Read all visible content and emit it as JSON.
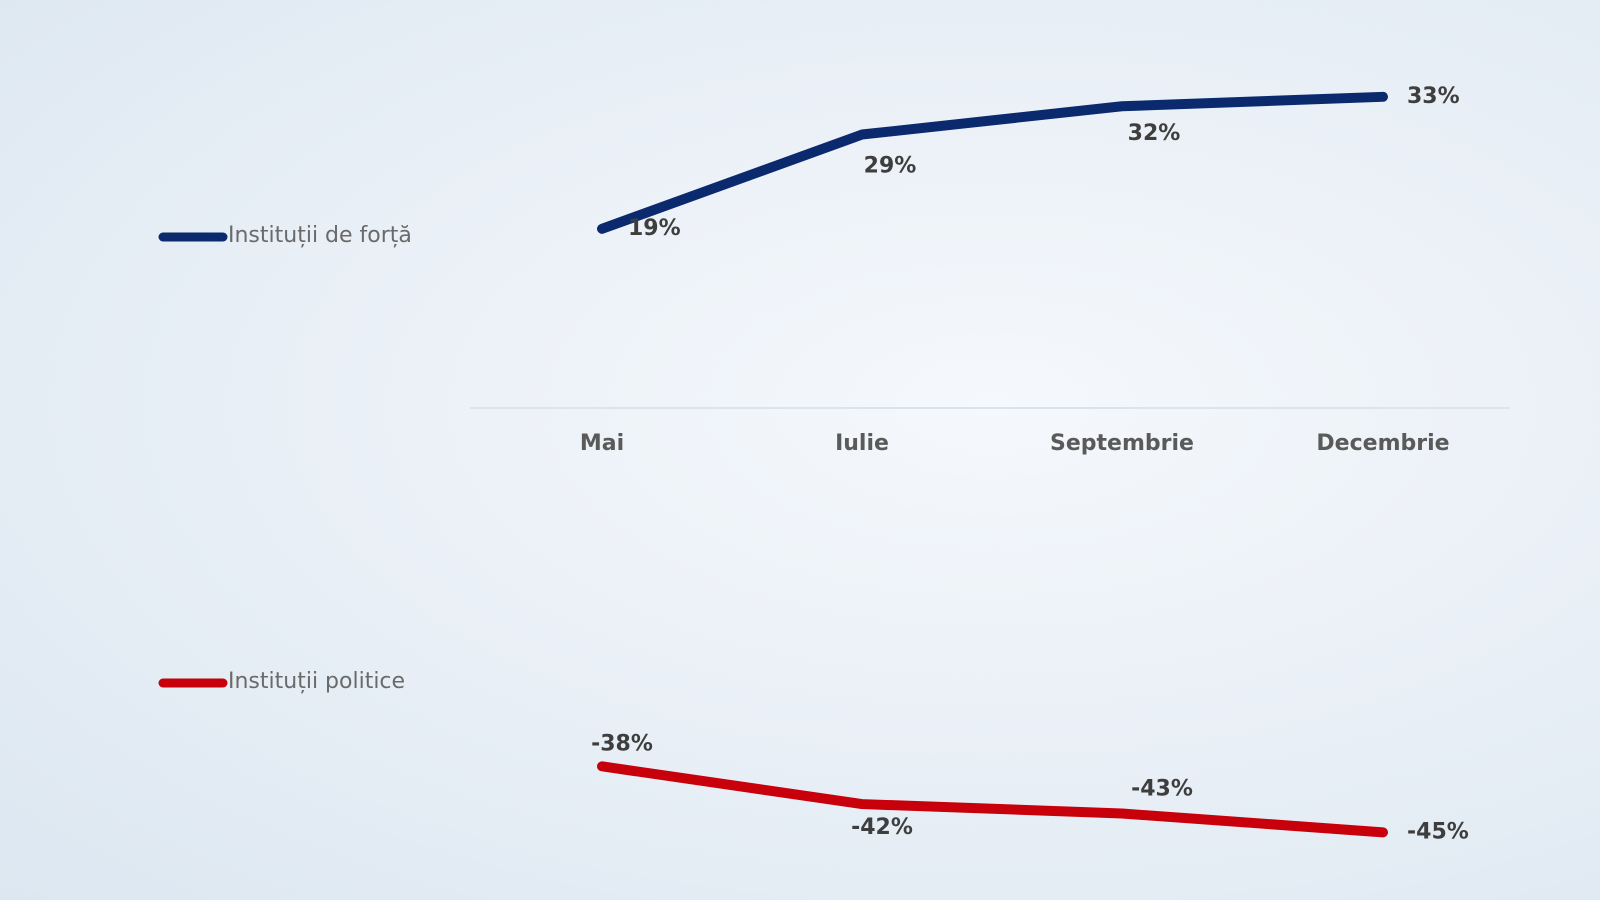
{
  "chart_data": {
    "type": "line",
    "categories": [
      "Mai",
      "Iulie",
      "Septembrie",
      "Decembrie"
    ],
    "series": [
      {
        "name": "Instituții de forță",
        "color": "#0b2a6e",
        "values": [
          19,
          29,
          32,
          33
        ],
        "value_labels": [
          "19%",
          "29%",
          "32%",
          "33%"
        ]
      },
      {
        "name": "Instituții politice",
        "color": "#c8000c",
        "values": [
          -38,
          -42,
          -43,
          -45
        ],
        "value_labels": [
          "-38%",
          "-42%",
          "-43%",
          "-45%"
        ]
      }
    ],
    "grid": false
  }
}
